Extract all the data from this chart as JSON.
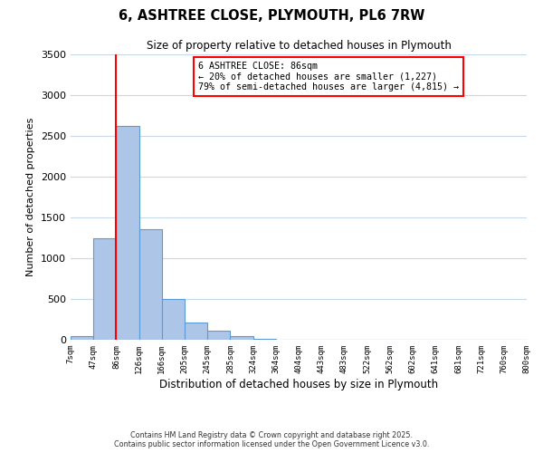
{
  "title": "6, ASHTREE CLOSE, PLYMOUTH, PL6 7RW",
  "subtitle": "Size of property relative to detached houses in Plymouth",
  "xlabel": "Distribution of detached houses by size in Plymouth",
  "ylabel": "Number of detached properties",
  "bin_labels": [
    "7sqm",
    "47sqm",
    "86sqm",
    "126sqm",
    "166sqm",
    "205sqm",
    "245sqm",
    "285sqm",
    "324sqm",
    "364sqm",
    "404sqm",
    "443sqm",
    "483sqm",
    "522sqm",
    "562sqm",
    "602sqm",
    "641sqm",
    "681sqm",
    "721sqm",
    "760sqm",
    "800sqm"
  ],
  "bar_heights": [
    50,
    1250,
    2620,
    1360,
    500,
    210,
    110,
    40,
    10,
    5,
    3,
    1,
    1,
    0,
    0,
    0,
    0,
    0,
    0,
    0
  ],
  "bar_color": "#adc6e8",
  "bar_edge_color": "#5b9bd5",
  "vline_x": 2,
  "vline_color": "red",
  "ylim": [
    0,
    3500
  ],
  "yticks": [
    0,
    500,
    1000,
    1500,
    2000,
    2500,
    3000,
    3500
  ],
  "annotation_title": "6 ASHTREE CLOSE: 86sqm",
  "annotation_line1": "← 20% of detached houses are smaller (1,227)",
  "annotation_line2": "79% of semi-detached houses are larger (4,815) →",
  "annotation_box_color": "white",
  "annotation_box_edge_color": "red",
  "footer_line1": "Contains HM Land Registry data © Crown copyright and database right 2025.",
  "footer_line2": "Contains public sector information licensed under the Open Government Licence v3.0.",
  "bg_color": "white",
  "grid_color": "#c8d8e8"
}
